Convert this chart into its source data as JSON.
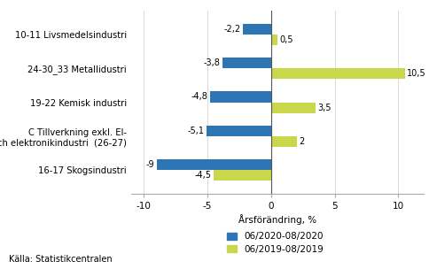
{
  "categories": [
    "16-17 Skogsindustri",
    "C Tillverkning exkl. El-\noch elektronikindustri  (26-27)",
    "19-22 Kemisk industri",
    "24-30_33 Metallidustri",
    "10-11 Livsmedelsindustri"
  ],
  "series1_values": [
    -9.0,
    -5.1,
    -4.8,
    -3.8,
    -2.2
  ],
  "series2_values": [
    -4.5,
    2.0,
    3.5,
    10.5,
    0.5
  ],
  "series1_label": "06/2020-08/2020",
  "series2_label": "06/2019-08/2019",
  "series1_color": "#2E75B6",
  "series2_color": "#C9D84A",
  "xlabel": "Årsförändring, %",
  "xlim": [
    -11,
    12
  ],
  "xticks": [
    -10,
    -5,
    0,
    5,
    10
  ],
  "source": "Källa: Statistikcentralen",
  "bar_height": 0.32
}
